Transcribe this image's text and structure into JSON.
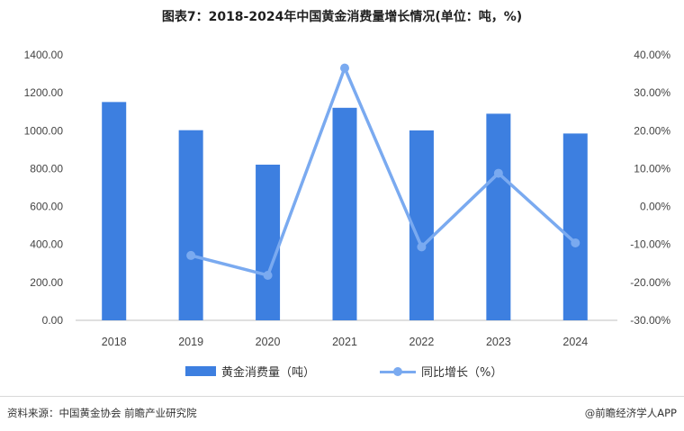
{
  "title": "图表7：2018-2024年中国黄金消费量增长情况(单位：吨，%)",
  "chart_data": {
    "type": "bar",
    "categories": [
      "2018",
      "2019",
      "2020",
      "2021",
      "2022",
      "2023",
      "2024"
    ],
    "series": [
      {
        "name": "黄金消费量（吨）",
        "type": "bar",
        "axis": "left",
        "color": "#3d7fe0",
        "values": [
          1151.43,
          1002.8,
          820.98,
          1120.9,
          1001.74,
          1089.69,
          985.31
        ]
      },
      {
        "name": "同比增长（%）",
        "type": "line",
        "axis": "right",
        "color": "#7aaaf0",
        "values": [
          null,
          -12.9,
          -18.13,
          36.53,
          -10.63,
          8.78,
          -9.58
        ]
      }
    ],
    "left_axis": {
      "min": 0,
      "max": 1400,
      "step": 200,
      "tick_labels": [
        "0.00",
        "200.00",
        "400.00",
        "600.00",
        "800.00",
        "1000.00",
        "1200.00",
        "1400.00"
      ]
    },
    "right_axis": {
      "min": -30,
      "max": 40,
      "step": 10,
      "tick_labels": [
        "-30.00%",
        "-20.00%",
        "-10.00%",
        "0.00%",
        "10.00%",
        "20.00%",
        "30.00%",
        "40.00%"
      ]
    },
    "grid": false,
    "legend_position": "bottom"
  },
  "legend": {
    "bar_label": "黄金消费量（吨）",
    "line_label": "同比增长（%）"
  },
  "footer": {
    "source": "资料来源：中国黄金协会 前瞻产业研究院",
    "brand": "@前瞻经济学人APP"
  }
}
